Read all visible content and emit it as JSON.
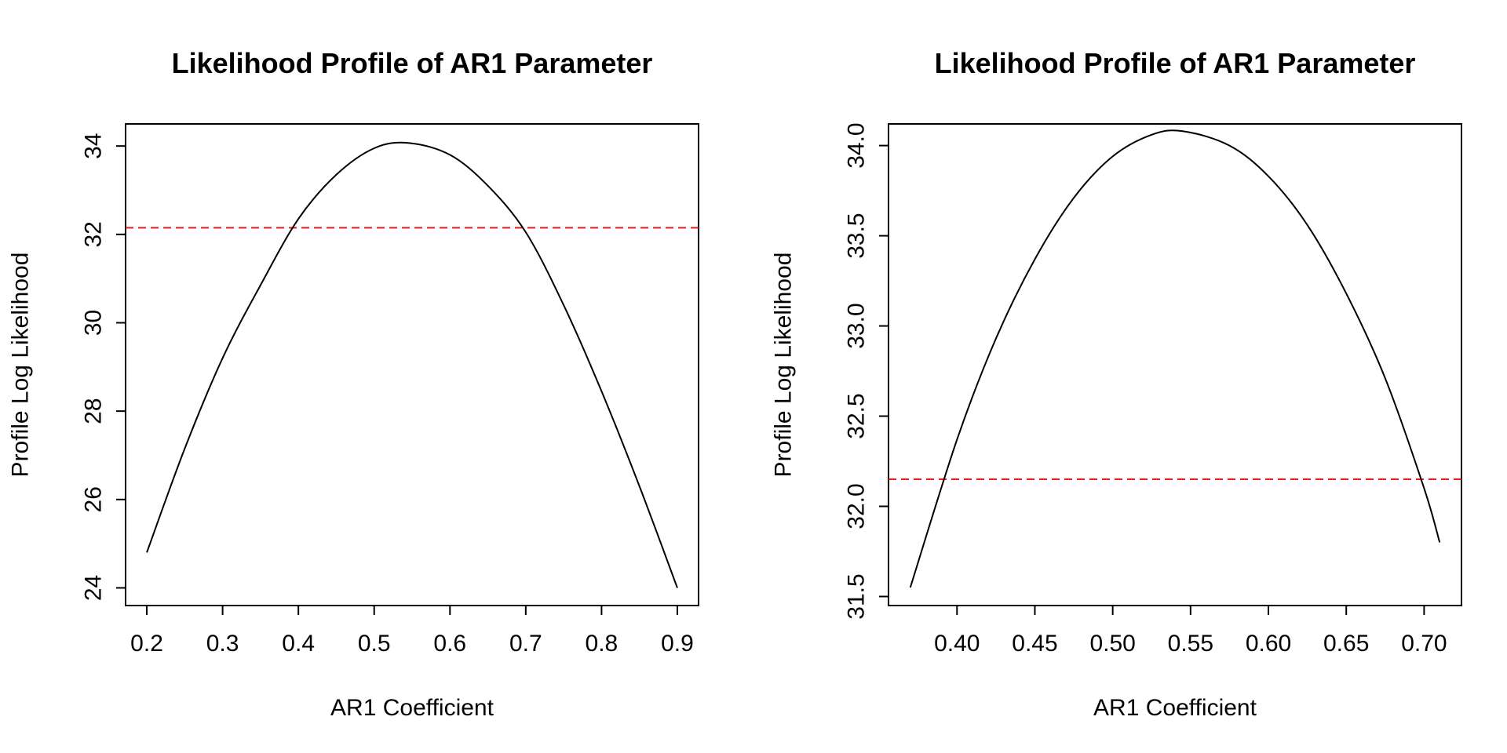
{
  "chart_data": [
    {
      "type": "line",
      "title": "Likelihood Profile of AR1 Parameter",
      "xlabel": "AR1 Coefficient",
      "ylabel": "Profile Log Likelihood",
      "xlim": [
        0.172,
        0.928
      ],
      "ylim": [
        23.6,
        34.5
      ],
      "xticks": [
        0.2,
        0.3,
        0.4,
        0.5,
        0.6,
        0.7,
        0.8,
        0.9
      ],
      "xtick_labels": [
        "0.2",
        "0.3",
        "0.4",
        "0.5",
        "0.6",
        "0.7",
        "0.8",
        "0.9"
      ],
      "yticks": [
        24,
        26,
        28,
        30,
        32,
        34
      ],
      "ytick_labels": [
        "24",
        "26",
        "28",
        "30",
        "32",
        "34"
      ],
      "grid": false,
      "series": [
        {
          "x": [
            0.2,
            0.25,
            0.3,
            0.35,
            0.4,
            0.45,
            0.5,
            0.545,
            0.6,
            0.65,
            0.7,
            0.75,
            0.8,
            0.85,
            0.9
          ],
          "y": [
            24.8,
            27.15,
            29.2,
            30.85,
            32.35,
            33.35,
            33.95,
            34.07,
            33.8,
            33.1,
            32.05,
            30.4,
            28.45,
            26.3,
            24.0
          ],
          "color": "#000000",
          "style": "solid"
        }
      ],
      "reference_line": {
        "y": 32.15,
        "color": "#e41a1c",
        "style": "dashed"
      }
    },
    {
      "type": "line",
      "title": "Likelihood Profile of AR1 Parameter",
      "xlabel": "AR1 Coefficient",
      "ylabel": "Profile Log Likelihood",
      "xlim": [
        0.356,
        0.724
      ],
      "ylim": [
        31.45,
        34.12
      ],
      "xticks": [
        0.4,
        0.45,
        0.5,
        0.55,
        0.6,
        0.65,
        0.7
      ],
      "xtick_labels": [
        "0.40",
        "0.45",
        "0.50",
        "0.55",
        "0.60",
        "0.65",
        "0.70"
      ],
      "yticks": [
        31.5,
        32.0,
        32.5,
        33.0,
        33.5,
        34.0
      ],
      "ytick_labels": [
        "31.5",
        "32.0",
        "32.5",
        "33.0",
        "33.5",
        "34.0"
      ],
      "grid": false,
      "series": [
        {
          "x": [
            0.37,
            0.4,
            0.425,
            0.45,
            0.475,
            0.5,
            0.525,
            0.545,
            0.575,
            0.6,
            0.625,
            0.65,
            0.675,
            0.7,
            0.71
          ],
          "y": [
            31.55,
            32.37,
            32.93,
            33.37,
            33.71,
            33.94,
            34.06,
            34.08,
            34.0,
            33.83,
            33.56,
            33.18,
            32.71,
            32.1,
            31.8
          ],
          "color": "#000000",
          "style": "solid"
        }
      ],
      "reference_line": {
        "y": 32.15,
        "color": "#e41a1c",
        "style": "dashed"
      }
    }
  ]
}
